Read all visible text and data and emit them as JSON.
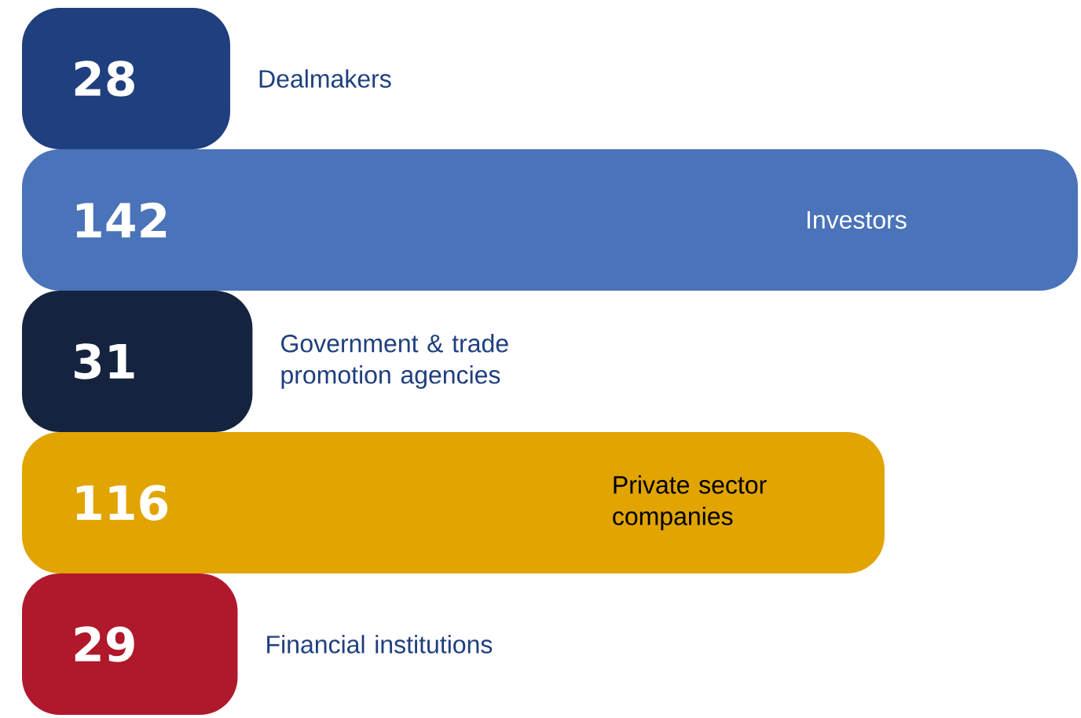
{
  "chart_data": {
    "type": "bar",
    "orientation": "horizontal",
    "categories": [
      "Dealmakers",
      "Investors",
      "Government & trade promotion agencies",
      "Private sector companies",
      "Financial institutions"
    ],
    "values": [
      28,
      142,
      31,
      116,
      29
    ],
    "colors": [
      "#1f3f7e",
      "#4a73b9",
      "#15233f",
      "#e1a400",
      "#b0182b"
    ],
    "data_labels": true
  }
}
